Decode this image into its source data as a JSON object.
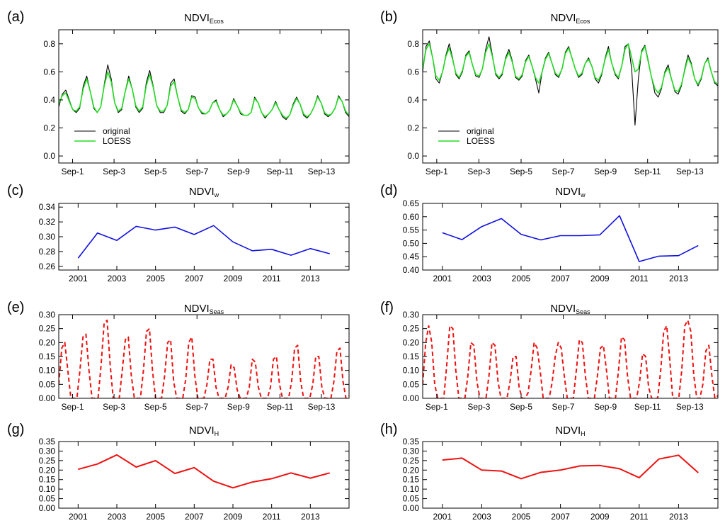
{
  "colors": {
    "original": "#000000",
    "loess": "#22dd22",
    "weekly": "#1010e0",
    "seasonal": "#ee1111",
    "hist": "#ee1111"
  },
  "legend": {
    "original": "original",
    "loess": "LOESS"
  },
  "chart_data": [
    {
      "type": "line",
      "label": "(a)",
      "title_main": "NDVI",
      "title_sub": "Ecos",
      "ylim": [
        -0.05,
        0.9
      ],
      "yticks": [
        "0.0",
        "0.2",
        "0.4",
        "0.6",
        "0.8"
      ],
      "ytick_values": [
        0,
        0.2,
        0.4,
        0.6,
        0.8
      ],
      "xlim": [
        0,
        168
      ],
      "xticks": [
        "Sep-1",
        "Sep-3",
        "Sep-5",
        "Sep-7",
        "Sep-9",
        "Sep-11",
        "Sep-13"
      ],
      "xtick_values": [
        8,
        32,
        56,
        80,
        104,
        128,
        152
      ],
      "legend_position": "lower-left",
      "series": [
        {
          "name": "original",
          "style": "original",
          "values": [
            0.35,
            0.44,
            0.47,
            0.4,
            0.33,
            0.31,
            0.34,
            0.5,
            0.57,
            0.46,
            0.34,
            0.31,
            0.35,
            0.51,
            0.65,
            0.55,
            0.38,
            0.31,
            0.33,
            0.46,
            0.57,
            0.48,
            0.35,
            0.31,
            0.34,
            0.52,
            0.61,
            0.5,
            0.36,
            0.31,
            0.31,
            0.36,
            0.52,
            0.55,
            0.42,
            0.32,
            0.3,
            0.33,
            0.43,
            0.42,
            0.34,
            0.3,
            0.3,
            0.32,
            0.38,
            0.4,
            0.33,
            0.28,
            0.3,
            0.33,
            0.41,
            0.36,
            0.3,
            0.29,
            0.29,
            0.31,
            0.42,
            0.38,
            0.31,
            0.27,
            0.3,
            0.33,
            0.39,
            0.33,
            0.28,
            0.26,
            0.29,
            0.37,
            0.42,
            0.37,
            0.29,
            0.27,
            0.3,
            0.35,
            0.43,
            0.38,
            0.3,
            0.28,
            0.3,
            0.34,
            0.43,
            0.39,
            0.31,
            0.28
          ]
        },
        {
          "name": "LOESS",
          "style": "loess",
          "values": [
            0.37,
            0.43,
            0.45,
            0.39,
            0.33,
            0.32,
            0.35,
            0.48,
            0.55,
            0.46,
            0.35,
            0.31,
            0.35,
            0.5,
            0.6,
            0.53,
            0.38,
            0.32,
            0.34,
            0.46,
            0.55,
            0.48,
            0.36,
            0.32,
            0.35,
            0.5,
            0.58,
            0.49,
            0.36,
            0.32,
            0.32,
            0.36,
            0.5,
            0.53,
            0.42,
            0.33,
            0.31,
            0.33,
            0.42,
            0.41,
            0.34,
            0.31,
            0.3,
            0.32,
            0.38,
            0.39,
            0.33,
            0.29,
            0.3,
            0.33,
            0.4,
            0.36,
            0.31,
            0.29,
            0.29,
            0.31,
            0.41,
            0.38,
            0.31,
            0.28,
            0.3,
            0.33,
            0.38,
            0.33,
            0.29,
            0.27,
            0.29,
            0.36,
            0.41,
            0.37,
            0.3,
            0.28,
            0.3,
            0.35,
            0.42,
            0.38,
            0.31,
            0.29,
            0.3,
            0.34,
            0.42,
            0.39,
            0.32,
            0.29
          ]
        }
      ]
    },
    {
      "type": "line",
      "label": "(b)",
      "title_main": "NDVI",
      "title_sub": "Ecos",
      "ylim": [
        -0.05,
        0.9
      ],
      "yticks": [
        "0.0",
        "0.2",
        "0.4",
        "0.6",
        "0.8"
      ],
      "ytick_values": [
        0,
        0.2,
        0.4,
        0.6,
        0.8
      ],
      "xlim": [
        0,
        168
      ],
      "xticks": [
        "Sep-1",
        "Sep-3",
        "Sep-5",
        "Sep-7",
        "Sep-9",
        "Sep-11",
        "Sep-13"
      ],
      "xtick_values": [
        8,
        32,
        56,
        80,
        104,
        128,
        152
      ],
      "legend_position": "lower-left",
      "series": [
        {
          "name": "original",
          "style": "original",
          "values": [
            0.6,
            0.78,
            0.82,
            0.7,
            0.55,
            0.52,
            0.6,
            0.72,
            0.8,
            0.7,
            0.58,
            0.55,
            0.6,
            0.72,
            0.75,
            0.65,
            0.57,
            0.56,
            0.62,
            0.76,
            0.85,
            0.72,
            0.58,
            0.55,
            0.58,
            0.7,
            0.76,
            0.68,
            0.56,
            0.54,
            0.57,
            0.68,
            0.72,
            0.64,
            0.55,
            0.45,
            0.6,
            0.7,
            0.74,
            0.66,
            0.58,
            0.56,
            0.62,
            0.74,
            0.78,
            0.7,
            0.62,
            0.56,
            0.58,
            0.66,
            0.7,
            0.64,
            0.55,
            0.52,
            0.58,
            0.7,
            0.78,
            0.66,
            0.58,
            0.55,
            0.64,
            0.78,
            0.8,
            0.62,
            0.22,
            0.55,
            0.75,
            0.79,
            0.68,
            0.56,
            0.45,
            0.42,
            0.48,
            0.6,
            0.65,
            0.55,
            0.46,
            0.44,
            0.5,
            0.62,
            0.72,
            0.66,
            0.55,
            0.5,
            0.55,
            0.66,
            0.7,
            0.6,
            0.52,
            0.5
          ]
        },
        {
          "name": "LOESS",
          "style": "loess",
          "values": [
            0.62,
            0.76,
            0.8,
            0.7,
            0.57,
            0.54,
            0.6,
            0.71,
            0.77,
            0.69,
            0.59,
            0.56,
            0.61,
            0.71,
            0.74,
            0.65,
            0.58,
            0.57,
            0.62,
            0.74,
            0.8,
            0.71,
            0.59,
            0.56,
            0.59,
            0.69,
            0.74,
            0.67,
            0.57,
            0.55,
            0.58,
            0.67,
            0.71,
            0.64,
            0.56,
            0.52,
            0.6,
            0.69,
            0.73,
            0.66,
            0.59,
            0.57,
            0.62,
            0.73,
            0.77,
            0.7,
            0.62,
            0.57,
            0.59,
            0.66,
            0.69,
            0.64,
            0.56,
            0.54,
            0.59,
            0.69,
            0.76,
            0.66,
            0.59,
            0.56,
            0.64,
            0.76,
            0.8,
            0.7,
            0.6,
            0.62,
            0.74,
            0.78,
            0.67,
            0.56,
            0.48,
            0.45,
            0.49,
            0.59,
            0.63,
            0.55,
            0.47,
            0.46,
            0.51,
            0.61,
            0.7,
            0.65,
            0.55,
            0.51,
            0.56,
            0.66,
            0.69,
            0.6,
            0.53,
            0.51
          ]
        }
      ]
    },
    {
      "type": "line",
      "label": "(c)",
      "title_main": "NDVI",
      "title_sub": "w",
      "ylim": [
        0.255,
        0.345
      ],
      "yticks": [
        "0.26",
        "0.28",
        "0.30",
        "0.32",
        "0.34"
      ],
      "ytick_values": [
        0.26,
        0.28,
        0.3,
        0.32,
        0.34
      ],
      "xlim": [
        2000,
        2015
      ],
      "xticks": [
        "2001",
        "2003",
        "2005",
        "2007",
        "2009",
        "2011",
        "2013"
      ],
      "xtick_values": [
        2001,
        2003,
        2005,
        2007,
        2009,
        2011,
        2013
      ],
      "series": [
        {
          "style": "weekly",
          "x": [
            2001,
            2002,
            2003,
            2004,
            2005,
            2006,
            2007,
            2008,
            2009,
            2010,
            2011,
            2012,
            2013,
            2014
          ],
          "values": [
            0.271,
            0.305,
            0.295,
            0.314,
            0.309,
            0.313,
            0.303,
            0.315,
            0.293,
            0.281,
            0.283,
            0.275,
            0.284,
            0.277
          ]
        }
      ]
    },
    {
      "type": "line",
      "label": "(d)",
      "title_main": "NDVI",
      "title_sub": "w",
      "ylim": [
        0.4,
        0.65
      ],
      "yticks": [
        "0.40",
        "0.45",
        "0.50",
        "0.55",
        "0.60",
        "0.65"
      ],
      "ytick_values": [
        0.4,
        0.45,
        0.5,
        0.55,
        0.6,
        0.65
      ],
      "xlim": [
        2000,
        2015
      ],
      "xticks": [
        "2001",
        "2003",
        "2005",
        "2007",
        "2009",
        "2011",
        "2013"
      ],
      "xtick_values": [
        2001,
        2003,
        2005,
        2007,
        2009,
        2011,
        2013
      ],
      "series": [
        {
          "style": "weekly",
          "x": [
            2001,
            2002,
            2003,
            2004,
            2005,
            2006,
            2007,
            2008,
            2009,
            2010,
            2011,
            2012,
            2013,
            2014
          ],
          "values": [
            0.54,
            0.514,
            0.563,
            0.593,
            0.534,
            0.513,
            0.529,
            0.529,
            0.532,
            0.604,
            0.432,
            0.452,
            0.454,
            0.492
          ]
        }
      ]
    },
    {
      "type": "line",
      "label": "(e)",
      "title_main": "NDVI",
      "title_sub": "Seas",
      "ylim": [
        0.0,
        0.3
      ],
      "yticks": [
        "0.00",
        "0.05",
        "0.10",
        "0.15",
        "0.20",
        "0.25",
        "0.30"
      ],
      "ytick_values": [
        0,
        0.05,
        0.1,
        0.15,
        0.2,
        0.25,
        0.3
      ],
      "xlim": [
        0,
        168
      ],
      "xticks": [
        "Sep-1",
        "Sep-3",
        "Sep-5",
        "Sep-7",
        "Sep-9",
        "Sep-11",
        "Sep-13"
      ],
      "xtick_values": [
        8,
        32,
        56,
        80,
        104,
        128,
        152
      ],
      "series": [
        {
          "style": "seasonal",
          "values": [
            0.05,
            0.18,
            0.2,
            0.1,
            0.0,
            0.0,
            0.0,
            0.1,
            0.22,
            0.23,
            0.1,
            0.0,
            0.0,
            0.0,
            0.12,
            0.27,
            0.28,
            0.12,
            0.0,
            0.0,
            0.0,
            0.1,
            0.21,
            0.22,
            0.08,
            0.0,
            0.0,
            0.0,
            0.1,
            0.24,
            0.25,
            0.1,
            0.0,
            0.0,
            0.0,
            0.08,
            0.2,
            0.21,
            0.06,
            0.0,
            0.0,
            0.0,
            0.07,
            0.2,
            0.22,
            0.08,
            0.0,
            0.0,
            0.0,
            0.05,
            0.14,
            0.14,
            0.04,
            0.0,
            0.0,
            0.0,
            0.04,
            0.12,
            0.11,
            0.03,
            0.0,
            0.0,
            0.0,
            0.04,
            0.14,
            0.13,
            0.04,
            0.0,
            0.0,
            0.0,
            0.04,
            0.14,
            0.15,
            0.05,
            0.0,
            0.0,
            0.0,
            0.06,
            0.18,
            0.19,
            0.06,
            0.0,
            0.0,
            0.0,
            0.05,
            0.15,
            0.15,
            0.04,
            0.0,
            0.0,
            0.0,
            0.06,
            0.17,
            0.18,
            0.06,
            0.0,
            0.01
          ]
        }
      ]
    },
    {
      "type": "line",
      "label": "(f)",
      "title_main": "NDVI",
      "title_sub": "Seas",
      "ylim": [
        0.0,
        0.3
      ],
      "yticks": [
        "0.00",
        "0.05",
        "0.10",
        "0.15",
        "0.20",
        "0.25",
        "0.30"
      ],
      "ytick_values": [
        0,
        0.05,
        0.1,
        0.15,
        0.2,
        0.25,
        0.3
      ],
      "xlim": [
        0,
        168
      ],
      "xticks": [
        "Sep-1",
        "Sep-3",
        "Sep-5",
        "Sep-7",
        "Sep-9",
        "Sep-11",
        "Sep-13"
      ],
      "xtick_values": [
        8,
        32,
        56,
        80,
        104,
        128,
        152
      ],
      "series": [
        {
          "style": "seasonal",
          "values": [
            0.05,
            0.2,
            0.26,
            0.2,
            0.05,
            0.0,
            0.0,
            0.0,
            0.12,
            0.26,
            0.25,
            0.1,
            0.0,
            0.0,
            0.0,
            0.08,
            0.2,
            0.19,
            0.06,
            0.0,
            0.0,
            0.0,
            0.08,
            0.2,
            0.19,
            0.06,
            0.0,
            0.0,
            0.0,
            0.06,
            0.15,
            0.15,
            0.04,
            0.0,
            0.0,
            0.02,
            0.1,
            0.2,
            0.18,
            0.1,
            0.0,
            0.0,
            0.0,
            0.06,
            0.15,
            0.2,
            0.18,
            0.08,
            0.0,
            0.0,
            0.0,
            0.1,
            0.21,
            0.2,
            0.08,
            0.0,
            0.0,
            0.0,
            0.08,
            0.18,
            0.19,
            0.1,
            0.0,
            0.0,
            0.0,
            0.1,
            0.22,
            0.21,
            0.08,
            0.0,
            0.0,
            0.0,
            0.06,
            0.16,
            0.15,
            0.04,
            0.0,
            0.0,
            0.0,
            0.1,
            0.24,
            0.26,
            0.14,
            0.0,
            0.0,
            0.0,
            0.1,
            0.26,
            0.28,
            0.24,
            0.08,
            0.0,
            0.0,
            0.05,
            0.17,
            0.19,
            0.08,
            0.0,
            0.01
          ]
        }
      ]
    },
    {
      "type": "line",
      "label": "(g)",
      "title_main": "NDVI",
      "title_sub": "H",
      "ylim": [
        0.0,
        0.35
      ],
      "yticks": [
        "0.00",
        "0.05",
        "0.10",
        "0.15",
        "0.20",
        "0.25",
        "0.30",
        "0.35"
      ],
      "ytick_values": [
        0,
        0.05,
        0.1,
        0.15,
        0.2,
        0.25,
        0.3,
        0.35
      ],
      "xlim": [
        2000,
        2015
      ],
      "xticks": [
        "2001",
        "2003",
        "2005",
        "2007",
        "2009",
        "2011",
        "2013"
      ],
      "xtick_values": [
        2001,
        2003,
        2005,
        2007,
        2009,
        2011,
        2013
      ],
      "series": [
        {
          "style": "hist",
          "x": [
            2001,
            2002,
            2003,
            2004,
            2005,
            2006,
            2007,
            2008,
            2009,
            2010,
            2011,
            2012,
            2013,
            2014
          ],
          "values": [
            0.204,
            0.232,
            0.28,
            0.216,
            0.25,
            0.182,
            0.213,
            0.142,
            0.107,
            0.137,
            0.155,
            0.185,
            0.158,
            0.185
          ]
        }
      ]
    },
    {
      "type": "line",
      "label": "(h)",
      "title_main": "NDVI",
      "title_sub": "H",
      "ylim": [
        0.0,
        0.35
      ],
      "yticks": [
        "0.00",
        "0.05",
        "0.10",
        "0.15",
        "0.20",
        "0.25",
        "0.30",
        "0.35"
      ],
      "ytick_values": [
        0,
        0.05,
        0.1,
        0.15,
        0.2,
        0.25,
        0.3,
        0.35
      ],
      "xlim": [
        2000,
        2015
      ],
      "xticks": [
        "2001",
        "2003",
        "2005",
        "2007",
        "2009",
        "2011",
        "2013"
      ],
      "xtick_values": [
        2001,
        2003,
        2005,
        2007,
        2009,
        2011,
        2013
      ],
      "series": [
        {
          "style": "hist",
          "x": [
            2001,
            2002,
            2003,
            2004,
            2005,
            2006,
            2007,
            2008,
            2009,
            2010,
            2011,
            2012,
            2013,
            2014
          ],
          "values": [
            0.253,
            0.263,
            0.2,
            0.195,
            0.155,
            0.188,
            0.2,
            0.222,
            0.224,
            0.207,
            0.16,
            0.258,
            0.278,
            0.186
          ]
        }
      ]
    }
  ]
}
